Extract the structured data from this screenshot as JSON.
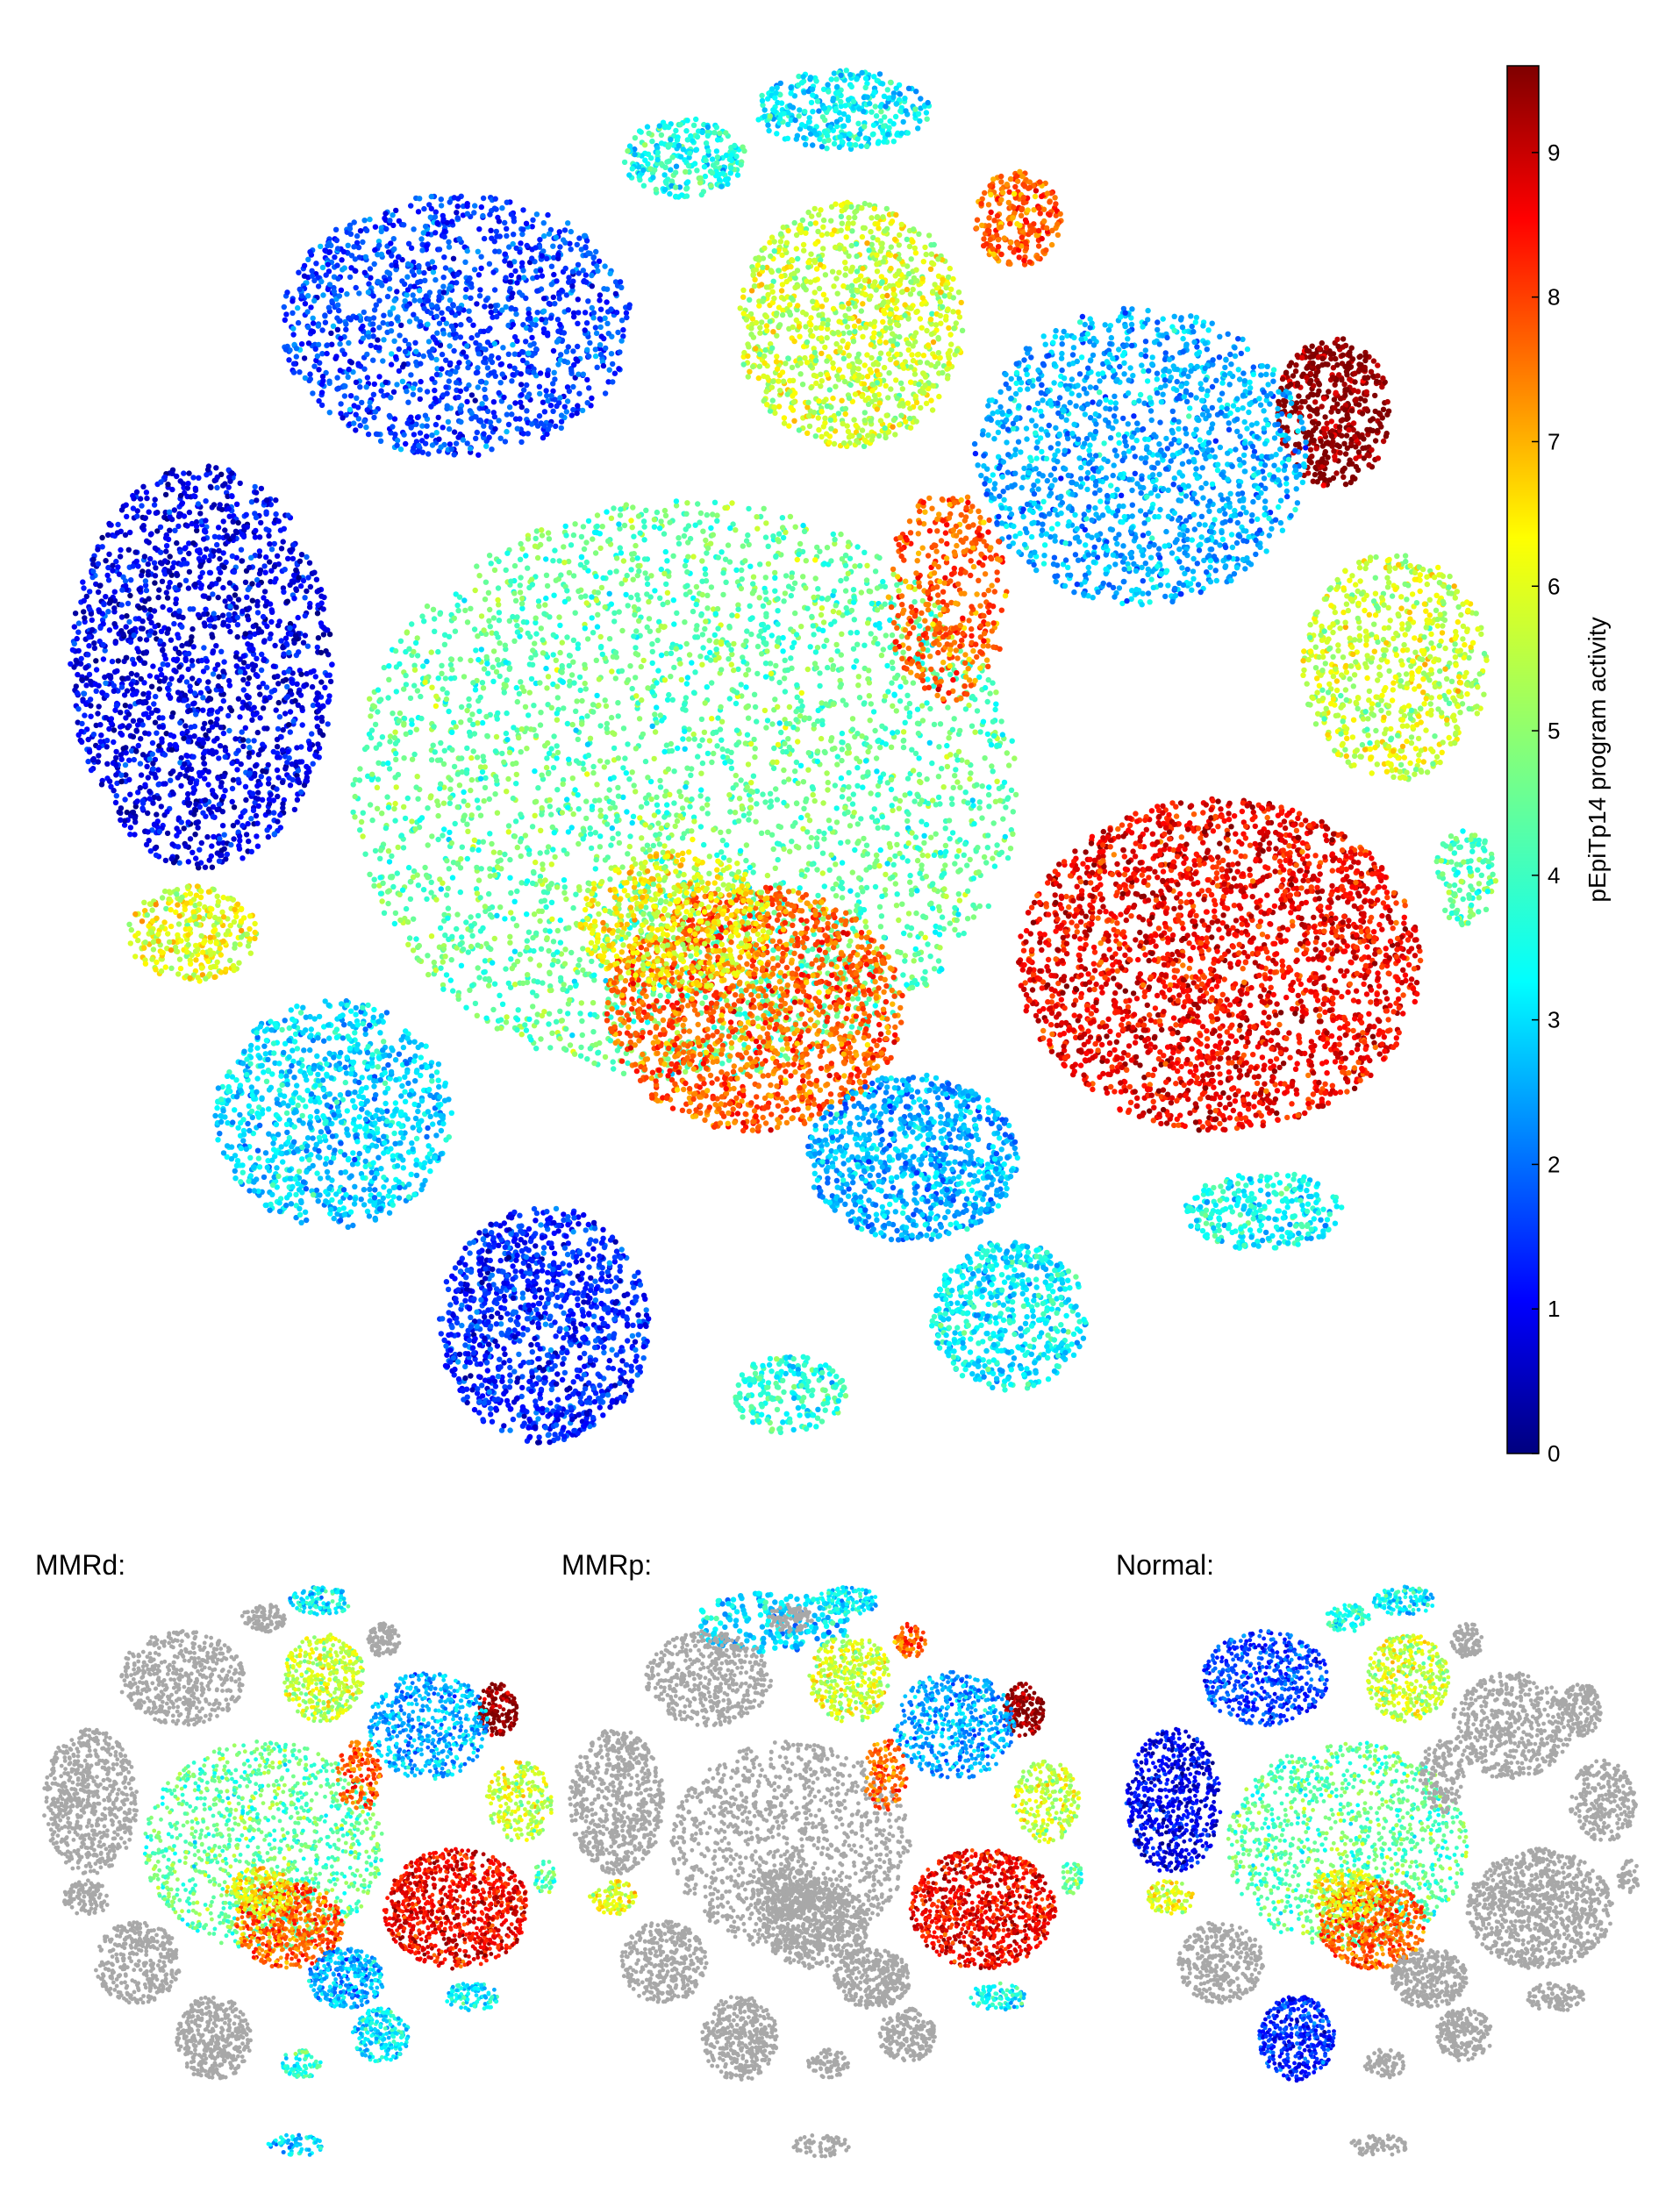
{
  "chart_data": [
    {
      "type": "scatter",
      "embedding": "tSNE",
      "title": "",
      "xlabel": "",
      "ylabel": "",
      "axes_visible": false,
      "color_by": "pEpiTp14 program activity",
      "colormap": "jet",
      "colorbar": {
        "label": "pEpiTp14 program activity",
        "range": [
          0,
          9.6
        ],
        "ticks": [
          0,
          1,
          2,
          3,
          4,
          5,
          6,
          7,
          8,
          9
        ],
        "tick_labels": [
          "0",
          "1",
          "2",
          "3",
          "4",
          "5",
          "6",
          "7",
          "8",
          "9"
        ],
        "placement": "right"
      },
      "clusters_approx": [
        {
          "id": "top-small",
          "activity_mean": 3.5
        },
        {
          "id": "upper-left-blue",
          "activity_mean": 1.8
        },
        {
          "id": "far-left-dark-blue",
          "activity_mean": 1.0
        },
        {
          "id": "center-large-green",
          "activity_mean": 4.5
        },
        {
          "id": "upper-center-yellow",
          "activity_mean": 5.5
        },
        {
          "id": "orange-patch-top",
          "activity_mean": 7.5
        },
        {
          "id": "dark-red-right-top",
          "activity_mean": 9.6
        },
        {
          "id": "right-yellow-patch",
          "activity_mean": 5.5
        },
        {
          "id": "lower-right-red",
          "activity_mean": 8.5
        },
        {
          "id": "lower-center-orange",
          "activity_mean": 7.5
        },
        {
          "id": "left-yellow-small",
          "activity_mean": 5.8
        },
        {
          "id": "lower-left-cyan",
          "activity_mean": 3.2
        },
        {
          "id": "bottom-left-dark-blue",
          "activity_mean": 1.5
        },
        {
          "id": "bottom-cyan-cluster",
          "activity_mean": 3.5
        },
        {
          "id": "right-cyan-clusters",
          "activity_mean": 2.8
        }
      ]
    },
    {
      "type": "scatter",
      "panel": "MMRd",
      "label": "MMRd:",
      "highlight": "MMRd cells colored by pEpiTp14 program activity; other cells grey",
      "background_color": "#a8a8a8"
    },
    {
      "type": "scatter",
      "panel": "MMRp",
      "label": "MMRp:",
      "highlight": "MMRp cells colored by pEpiTp14 program activity; other cells grey",
      "background_color": "#a8a8a8"
    },
    {
      "type": "scatter",
      "panel": "Normal",
      "label": "Normal:",
      "highlight": "Normal cells colored by pEpiTp14 program activity; other cells grey",
      "background_color": "#a8a8a8"
    }
  ],
  "panels": {
    "mmrd": {
      "label": "MMRd:"
    },
    "mmrp": {
      "label": "MMRp:"
    },
    "normal": {
      "label": "Normal:"
    }
  },
  "colorbar": {
    "label": "pEpiTp14 program activity",
    "tick_labels": [
      "0",
      "1",
      "2",
      "3",
      "4",
      "5",
      "6",
      "7",
      "8",
      "9"
    ]
  },
  "colors": {
    "jet_stops": [
      "#00007f",
      "#0000ff",
      "#007fff",
      "#00ffff",
      "#7fff7f",
      "#ffff00",
      "#ff7f00",
      "#ff0000",
      "#7f0000"
    ],
    "grey": "#a8a8a8"
  }
}
